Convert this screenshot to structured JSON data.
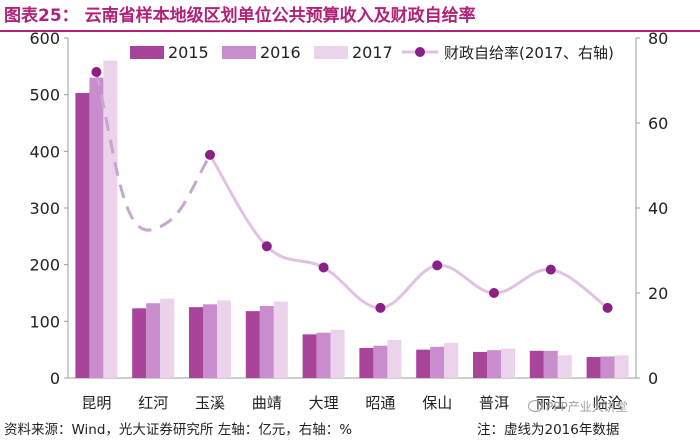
{
  "header": {
    "title": "图表25：  云南省样本地级区划单位公共预算收入及财政自给率"
  },
  "footer": {
    "source": "资料来源：Wind，光大证券研究所   左轴：亿元，右轴：%",
    "note": "注：虚线为2016年数据",
    "watermark": "PPP产业大讲堂"
  },
  "colors": {
    "title": "#b0227a",
    "s2015": "#a8449a",
    "s2016": "#c98ccd",
    "s2017": "#ecd3ec",
    "line": "#e2c2e4",
    "dot": "#8a1f86",
    "dashed": "#c9a6cf",
    "axis": "#9c9c9c"
  },
  "chart_data": {
    "type": "bar",
    "categories": [
      "昆明",
      "红河",
      "玉溪",
      "曲靖",
      "大理",
      "昭通",
      "保山",
      "普洱",
      "丽江",
      "临沧"
    ],
    "series": [
      {
        "name": "2015",
        "type": "bar",
        "axis": "left",
        "values": [
          503,
          123,
          125,
          118,
          77,
          53,
          50,
          46,
          48,
          37
        ]
      },
      {
        "name": "2016",
        "type": "bar",
        "axis": "left",
        "values": [
          530,
          132,
          130,
          127,
          80,
          57,
          55,
          49,
          48,
          38
        ]
      },
      {
        "name": "2017",
        "type": "bar",
        "axis": "left",
        "values": [
          560,
          140,
          137,
          135,
          85,
          67,
          62,
          52,
          40,
          40
        ]
      },
      {
        "name": "财政自给率(2017、右轴)",
        "type": "line",
        "axis": "right",
        "values": [
          72,
          null,
          52.5,
          31,
          26,
          16.5,
          26.5,
          20,
          25.5,
          16.5
        ]
      }
    ],
    "dashed_segment": {
      "from_category": "昆明",
      "via_category": "红河",
      "to_category": "玉溪",
      "via_value": 35
    },
    "left_axis": {
      "ylim": [
        0,
        600
      ],
      "ticks": [
        "0",
        "100",
        "200",
        "300",
        "400",
        "500",
        "600"
      ]
    },
    "right_axis": {
      "ylim": [
        0,
        80
      ],
      "ticks": [
        "0",
        "20",
        "40",
        "60",
        "80"
      ]
    },
    "legend": [
      "2015",
      "2016",
      "2017",
      "财政自给率(2017、右轴)"
    ],
    "legend_position": "top",
    "grid": false
  }
}
